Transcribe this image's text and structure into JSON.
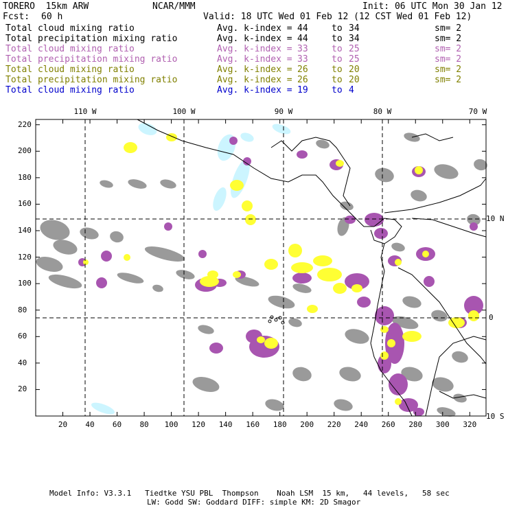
{
  "header": {
    "model": "TORERO  15km ARW",
    "center": "NCAR/MMM",
    "init": "Init: 06 UTC Mon 30 Jan 12",
    "fcst_label": "Fcst:",
    "fcst_value": "60 h",
    "valid": "Valid: 18 UTC Wed 01 Feb 12 (12 CST Wed 01 Feb 12)"
  },
  "legend": [
    {
      "field": "Total cloud mixing ratio",
      "kindex": "Avg. k-index =",
      "k1": "44",
      "to": "to",
      "k2": "34",
      "sm": "sm= 2",
      "color": "#000000"
    },
    {
      "field": "Total precipitation mixing ratio",
      "kindex": "Avg. k-index =",
      "k1": "44",
      "to": "to",
      "k2": "34",
      "sm": "sm= 2",
      "color": "#000000"
    },
    {
      "field": "Total cloud mixing ratio",
      "kindex": "Avg. k-index =",
      "k1": "33",
      "to": "to",
      "k2": "25",
      "sm": "sm= 2",
      "color": "#b060b0"
    },
    {
      "field": "Total precipitation mixing ratio",
      "kindex": "Avg. k-index =",
      "k1": "33",
      "to": "to",
      "k2": "25",
      "sm": "sm= 2",
      "color": "#b060b0"
    },
    {
      "field": "Total cloud mixing ratio",
      "kindex": "Avg. k-index =",
      "k1": "26",
      "to": "to",
      "k2": "20",
      "sm": "sm= 2",
      "color": "#808000"
    },
    {
      "field": "Total precipitation mixing ratio",
      "kindex": "Avg. k-index =",
      "k1": "26",
      "to": "to",
      "k2": "20",
      "sm": "sm= 2",
      "color": "#808000"
    },
    {
      "field": "Total cloud mixing ratio",
      "kindex": "Avg. k-index =",
      "k1": "19",
      "to": "to",
      "k2": "4",
      "sm": "",
      "color": "#0000cc"
    }
  ],
  "axes": {
    "top_lon_labels": [
      "110 W",
      "100 W",
      "90 W",
      "80 W",
      "70 W"
    ],
    "right_lat_labels": [
      "10 N",
      "0",
      "10 S"
    ],
    "y_ticks": [
      "220",
      "200",
      "180",
      "160",
      "140",
      "120",
      "100",
      "80",
      "60",
      "40",
      "20"
    ],
    "x_ticks": [
      "20",
      "40",
      "60",
      "80",
      "100",
      "120",
      "140",
      "160",
      "180",
      "200",
      "220",
      "240",
      "260",
      "280",
      "300",
      "320"
    ]
  },
  "colors": {
    "gray": "#9a9a9a",
    "purple": "#a855b0",
    "yellow": "#ffff33",
    "cyan": "#ccf5ff",
    "coast": "#000000",
    "grid": "#000000"
  },
  "footer": {
    "line1": "Model Info: V3.3.1   Tiedtke YSU PBL  Thompson    Noah LSM  15 km,   44 levels,   58 sec",
    "line2": "LW: Godd SW: Goddard DIFF: simple KM: 2D Smagor"
  }
}
